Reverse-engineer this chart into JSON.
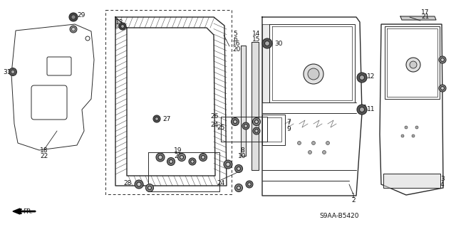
{
  "bg_color": "#ffffff",
  "line_color": "#2a2a2a",
  "label_color": "#111111",
  "diagram_code": "S9AA-B5420",
  "figsize": [
    6.4,
    3.19
  ],
  "dpi": 100
}
